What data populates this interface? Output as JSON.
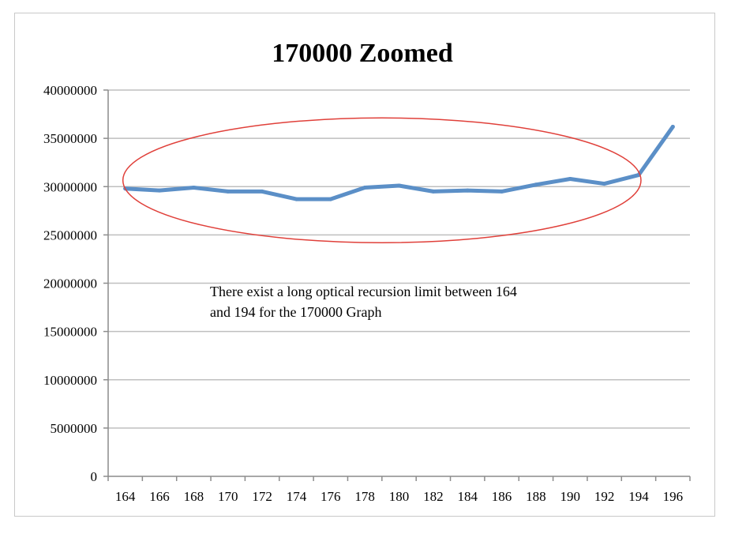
{
  "chart_data": {
    "type": "line",
    "title": "170000 Zoomed",
    "xlabel": "",
    "ylabel": "",
    "x": [
      164,
      166,
      168,
      170,
      172,
      174,
      176,
      178,
      180,
      182,
      184,
      186,
      188,
      190,
      192,
      194,
      196
    ],
    "x_tick_labels": [
      "164",
      "166",
      "168",
      "170",
      "172",
      "174",
      "176",
      "178",
      "180",
      "182",
      "184",
      "186",
      "188",
      "190",
      "192",
      "194",
      "196"
    ],
    "series": [
      {
        "name": "",
        "values": [
          29800000,
          29600000,
          29900000,
          29500000,
          29500000,
          28700000,
          28700000,
          29900000,
          30100000,
          29500000,
          29600000,
          29500000,
          30200000,
          30800000,
          30300000,
          31200000,
          36200000
        ]
      }
    ],
    "ylim": [
      0,
      40000000
    ],
    "y_ticks": [
      0,
      5000000,
      10000000,
      15000000,
      20000000,
      25000000,
      30000000,
      35000000,
      40000000
    ],
    "y_tick_labels": [
      "0",
      "5000000",
      "10000000",
      "15000000",
      "20000000",
      "25000000",
      "30000000",
      "35000000",
      "40000000"
    ],
    "grid": true,
    "legend": "none",
    "annotation": {
      "lines": [
        "There exist a long optical recursion limit between 164",
        "and 194 for the 170000 Graph"
      ],
      "highlight_x_range": [
        164,
        194
      ],
      "highlight_y_center": 30000000
    },
    "colors": {
      "series": "#5b8fc7",
      "gridline": "#bfbfbf",
      "ellipse": "#e0403a"
    }
  }
}
